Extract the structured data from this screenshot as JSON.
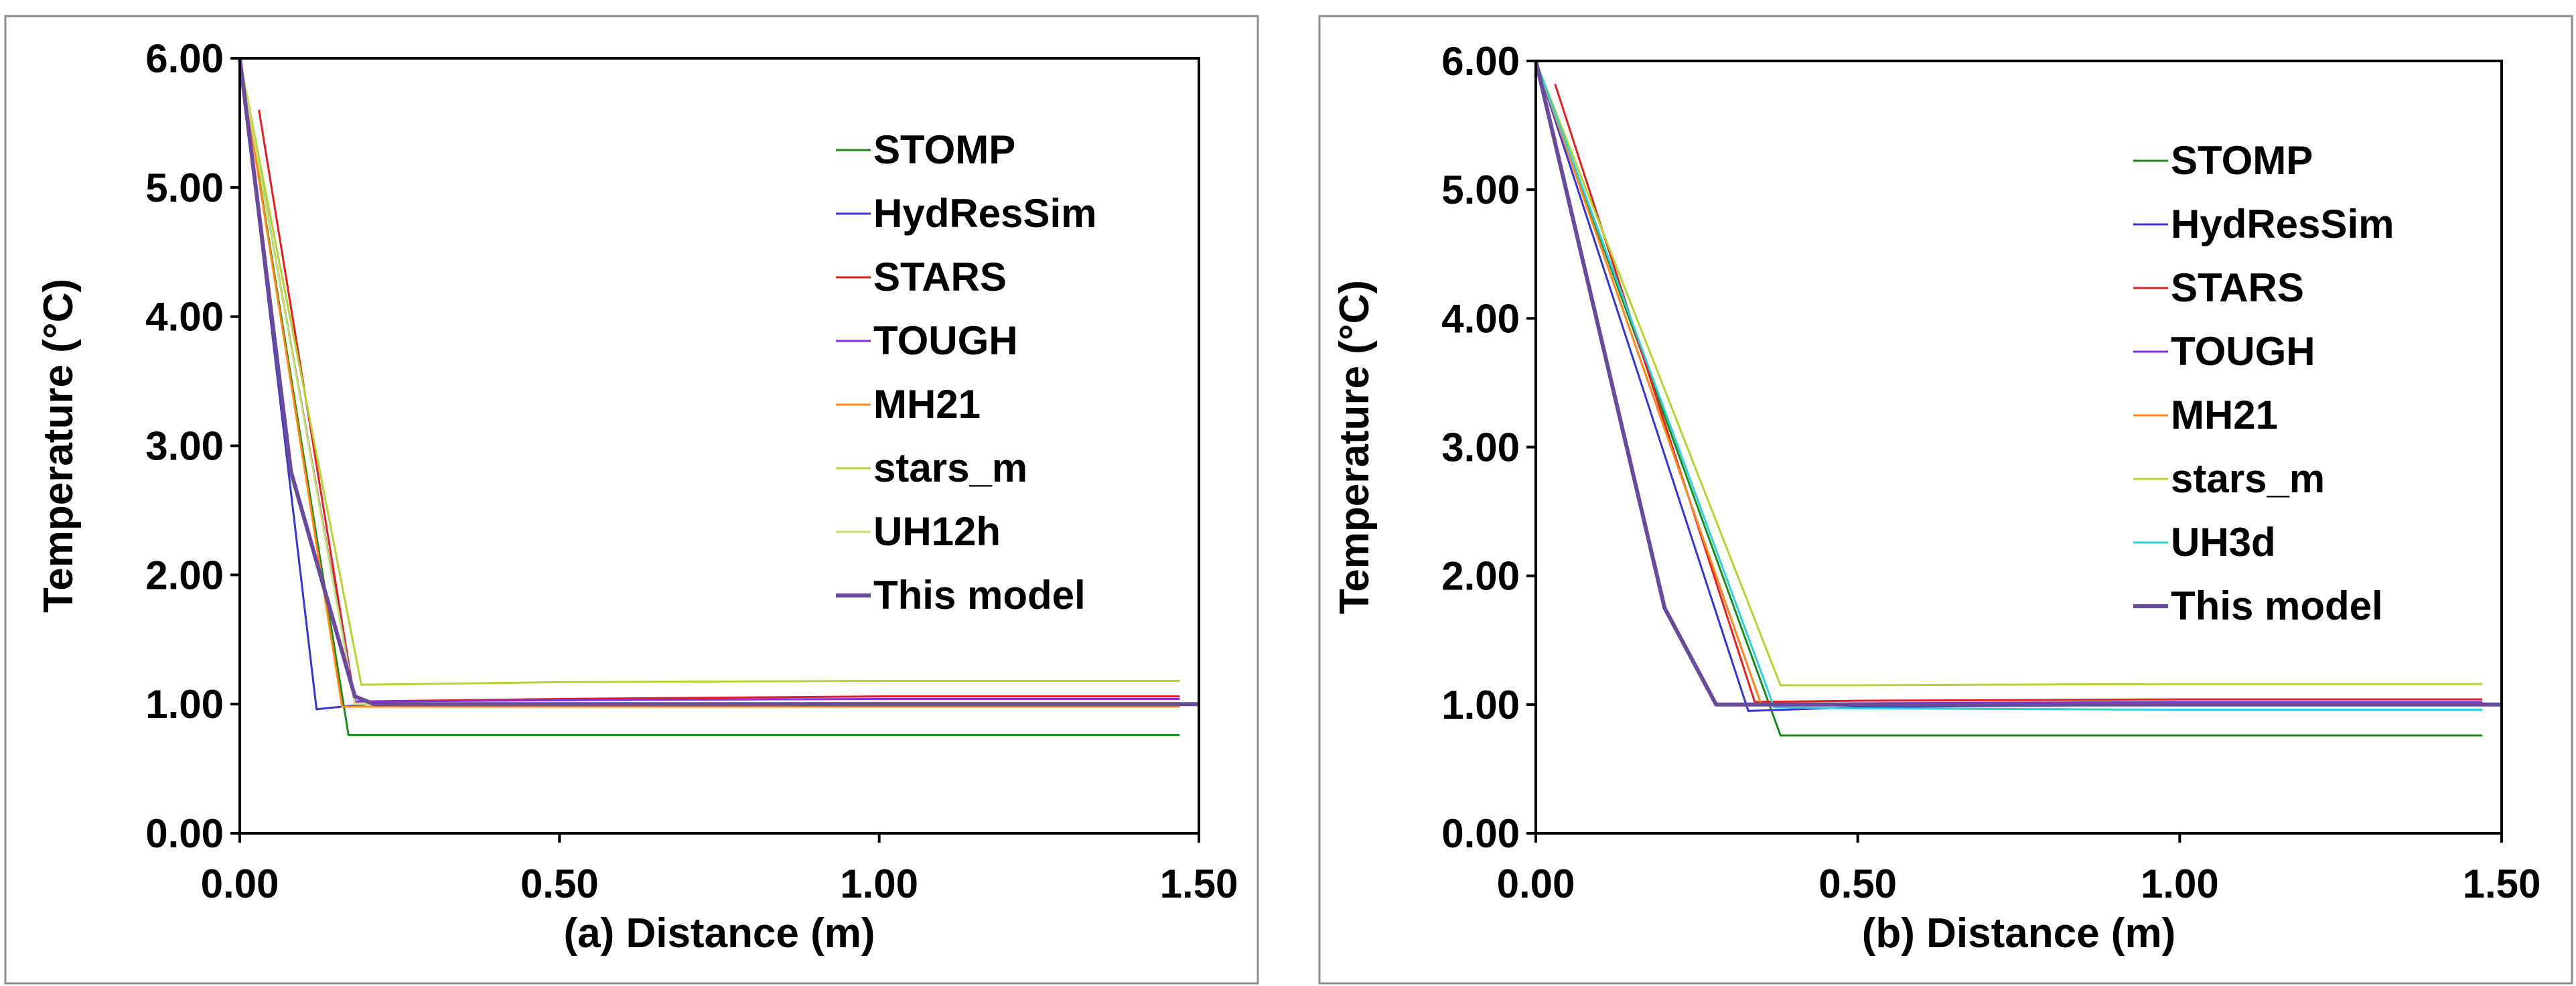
{
  "chart_data": [
    {
      "type": "line",
      "panel": "a",
      "xlabel": "(a) Distance (m)",
      "ylabel": "Temperature (°C)",
      "xlim": [
        0,
        1.5
      ],
      "ylim": [
        0,
        6
      ],
      "xticks": [
        "0.00",
        "0.50",
        "1.00",
        "1.50"
      ],
      "yticks": [
        "0.00",
        "1.00",
        "2.00",
        "3.00",
        "4.00",
        "5.00",
        "6.00"
      ],
      "legend_position": "top-right",
      "series": [
        {
          "name": "STOMP",
          "color": "#1a8a1a",
          "x": [
            0,
            0.17,
            0.2,
            1.47
          ],
          "y": [
            6.0,
            0.76,
            0.76,
            0.76
          ]
        },
        {
          "name": "HydResSim",
          "color": "#3535d0",
          "x": [
            0,
            0.12,
            0.16,
            0.2,
            1.47
          ],
          "y": [
            6.0,
            0.96,
            0.98,
            1.0,
            1.0
          ]
        },
        {
          "name": "STARS",
          "color": "#e02020",
          "x": [
            0.03,
            0.18,
            0.5,
            1.0,
            1.47
          ],
          "y": [
            5.6,
            1.02,
            1.04,
            1.06,
            1.06
          ]
        },
        {
          "name": "TOUGH",
          "color": "#8a2be2",
          "x": [
            0,
            0.18,
            0.5,
            1.0,
            1.47
          ],
          "y": [
            6.0,
            1.02,
            1.03,
            1.04,
            1.04
          ]
        },
        {
          "name": "MH21",
          "color": "#ff8c1a",
          "x": [
            0,
            0.16,
            0.5,
            1.0,
            1.47
          ],
          "y": [
            6.0,
            0.98,
            0.98,
            0.98,
            0.98
          ]
        },
        {
          "name": "stars_m",
          "color": "#b5d334",
          "x": [
            0,
            0.19,
            0.5,
            1.0,
            1.47
          ],
          "y": [
            6.0,
            1.15,
            1.17,
            1.18,
            1.18
          ]
        },
        {
          "name": "UH12h",
          "color": "#c5df6e",
          "x": [
            0,
            0.18,
            0.5,
            1.0,
            1.47
          ],
          "y": [
            6.0,
            1.0,
            1.0,
            1.01,
            1.01
          ]
        },
        {
          "name": "This model",
          "color": "#6a4a9a",
          "bold": true,
          "x": [
            0,
            0.08,
            0.18,
            0.21,
            0.5,
            1.0,
            1.5
          ],
          "y": [
            6.0,
            2.8,
            1.06,
            1.0,
            1.0,
            1.0,
            1.0
          ]
        }
      ]
    },
    {
      "type": "line",
      "panel": "b",
      "xlabel": "(b) Distance (m)",
      "ylabel": "Temperature (°C)",
      "xlim": [
        0,
        1.5
      ],
      "ylim": [
        0,
        6
      ],
      "xticks": [
        "0.00",
        "0.50",
        "1.00",
        "1.50"
      ],
      "yticks": [
        "0.00",
        "1.00",
        "2.00",
        "3.00",
        "4.00",
        "5.00",
        "6.00"
      ],
      "legend_position": "top-right",
      "series": [
        {
          "name": "STOMP",
          "color": "#1a8a1a",
          "x": [
            0,
            0.38,
            0.5,
            1.47
          ],
          "y": [
            6.0,
            0.76,
            0.76,
            0.76
          ]
        },
        {
          "name": "HydResSim",
          "color": "#3535d0",
          "x": [
            0,
            0.33,
            0.5,
            1.0,
            1.47
          ],
          "y": [
            6.0,
            0.95,
            0.98,
            1.0,
            1.0
          ]
        },
        {
          "name": "STARS",
          "color": "#e02020",
          "x": [
            0.03,
            0.34,
            0.5,
            1.0,
            1.47
          ],
          "y": [
            5.82,
            1.02,
            1.03,
            1.04,
            1.04
          ]
        },
        {
          "name": "TOUGH",
          "color": "#8a2be2",
          "x": [
            0,
            0.35,
            0.5,
            1.0,
            1.47
          ],
          "y": [
            6.0,
            1.0,
            1.01,
            1.02,
            1.02
          ]
        },
        {
          "name": "MH21",
          "color": "#ff8c1a",
          "x": [
            0,
            0.35,
            0.5,
            1.0,
            1.47
          ],
          "y": [
            6.0,
            1.0,
            1.0,
            1.0,
            1.0
          ]
        },
        {
          "name": "stars_m",
          "color": "#b5d334",
          "x": [
            0,
            0.38,
            0.5,
            1.0,
            1.47
          ],
          "y": [
            6.0,
            1.15,
            1.15,
            1.16,
            1.16
          ]
        },
        {
          "name": "UH3d",
          "color": "#33ccdd",
          "x": [
            0,
            0.37,
            0.5,
            1.0,
            1.47
          ],
          "y": [
            6.0,
            0.98,
            0.97,
            0.96,
            0.96
          ]
        },
        {
          "name": "This model",
          "color": "#6a4a9a",
          "bold": true,
          "x": [
            0,
            0.2,
            0.28,
            0.5,
            1.0,
            1.5
          ],
          "y": [
            6.0,
            1.75,
            1.0,
            1.0,
            1.0,
            1.0
          ]
        }
      ]
    }
  ]
}
